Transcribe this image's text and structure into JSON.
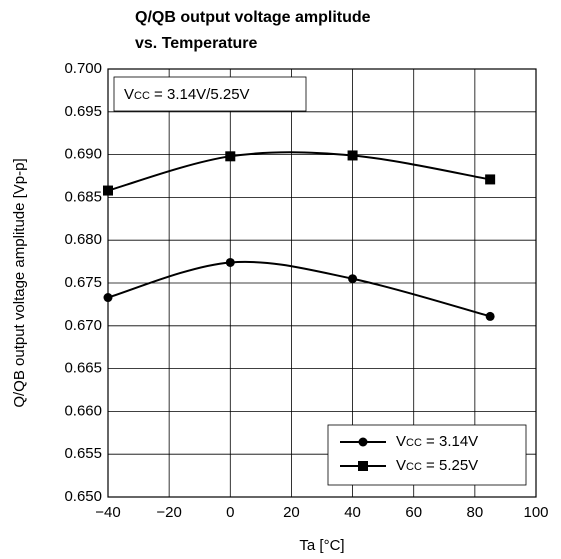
{
  "chart_data": {
    "type": "line",
    "title": [
      "Q/QB output voltage amplitude",
      "vs. Temperature"
    ],
    "xlabel": "Ta [°C]",
    "ylabel": "Q/QB output voltage amplitude [Vp-p]",
    "annotation": "Vcc = 3.14V/5.25V",
    "x": [
      -40,
      0,
      40,
      85
    ],
    "series": [
      {
        "name": "Vcc = 3.14V",
        "color": "#000000",
        "marker": "circle",
        "values": [
          0.6733,
          0.6774,
          0.6755,
          0.6711
        ]
      },
      {
        "name": "Vcc = 5.25V",
        "color": "#000000",
        "marker": "square",
        "values": [
          0.6858,
          0.6898,
          0.6899,
          0.6871
        ]
      }
    ],
    "xlim": [
      -40,
      100
    ],
    "xticks": [
      {
        "value": -40,
        "label": "−40"
      },
      {
        "value": -20,
        "label": "−20"
      },
      0,
      20,
      40,
      60,
      80,
      100
    ],
    "ylim": [
      0.65,
      0.7
    ],
    "yticks": [
      {
        "value": 0.65,
        "label": "0.650"
      },
      {
        "value": 0.655,
        "label": "0.655"
      },
      {
        "value": 0.66,
        "label": "0.660"
      },
      {
        "value": 0.665,
        "label": "0.665"
      },
      {
        "value": 0.67,
        "label": "0.670"
      },
      {
        "value": 0.675,
        "label": "0.675"
      },
      {
        "value": 0.68,
        "label": "0.680"
      },
      {
        "value": 0.685,
        "label": "0.685"
      },
      {
        "value": 0.69,
        "label": "0.690"
      },
      {
        "value": 0.695,
        "label": "0.695"
      },
      {
        "value": 0.7,
        "label": "0.700"
      }
    ],
    "grid": true,
    "legend": "lower right"
  }
}
